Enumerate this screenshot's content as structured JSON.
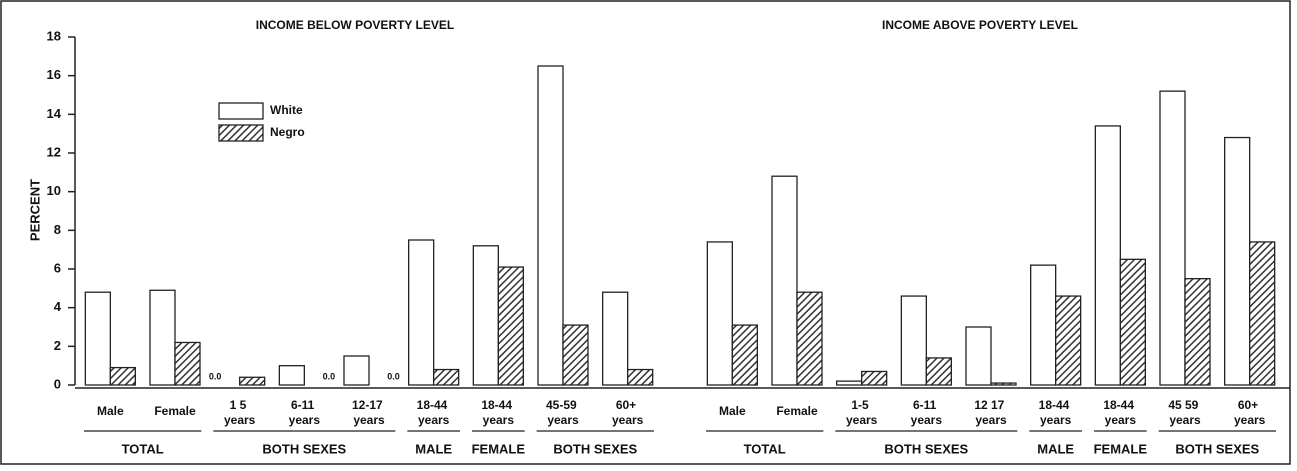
{
  "chart_data": {
    "type": "bar",
    "y_label": "PERCENT",
    "ylim": [
      0,
      18
    ],
    "yticks": [
      0,
      2,
      4,
      6,
      8,
      10,
      12,
      14,
      16,
      18
    ],
    "legend": [
      "White",
      "Negro"
    ],
    "panels": [
      {
        "title": "INCOME BELOW POVERTY LEVEL",
        "groups": [
          {
            "label": "TOTAL",
            "categories": [
              "Male",
              "Female"
            ]
          },
          {
            "label": "BOTH SEXES",
            "categories": [
              "1 5 years",
              "6-11 years",
              "12-17 years"
            ]
          },
          {
            "label": "MALE",
            "categories": [
              "18-44 years"
            ]
          },
          {
            "label": "FEMALE",
            "categories": [
              "18-44 years"
            ]
          },
          {
            "label": "BOTH SEXES",
            "categories": [
              "45-59 years",
              "60+ years"
            ]
          }
        ],
        "series": [
          {
            "name": "White",
            "color": "#ffffff",
            "values": [
              4.8,
              4.9,
              0,
              1.0,
              1.5,
              7.5,
              7.2,
              16.5,
              4.8
            ],
            "value_labels": [
              null,
              null,
              "0.0",
              null,
              null,
              null,
              null,
              null,
              null
            ]
          },
          {
            "name": "Negro",
            "color": "#333333",
            "values": [
              0.9,
              2.2,
              0.4,
              0,
              0,
              0.8,
              6.1,
              3.1,
              0.8
            ],
            "value_labels": [
              null,
              null,
              null,
              "0.0",
              "0.0",
              null,
              null,
              null,
              null
            ]
          }
        ]
      },
      {
        "title": "INCOME ABOVE POVERTY LEVEL",
        "groups": [
          {
            "label": "TOTAL",
            "categories": [
              "Male",
              "Female"
            ]
          },
          {
            "label": "BOTH SEXES",
            "categories": [
              "1-5 years",
              "6-11 years",
              "12 17 years"
            ]
          },
          {
            "label": "MALE",
            "categories": [
              "18-44 years"
            ]
          },
          {
            "label": "FEMALE",
            "categories": [
              "18-44 years"
            ]
          },
          {
            "label": "BOTH SEXES",
            "categories": [
              "45 59 years",
              "60+ years"
            ]
          }
        ],
        "series": [
          {
            "name": "White",
            "color": "#ffffff",
            "values": [
              7.4,
              10.8,
              0.2,
              4.6,
              3.0,
              6.2,
              13.4,
              15.2,
              12.8
            ]
          },
          {
            "name": "Negro",
            "color": "#333333",
            "values": [
              3.1,
              4.8,
              0.7,
              1.4,
              0.1,
              4.6,
              6.5,
              5.5,
              7.4
            ]
          }
        ]
      }
    ]
  }
}
